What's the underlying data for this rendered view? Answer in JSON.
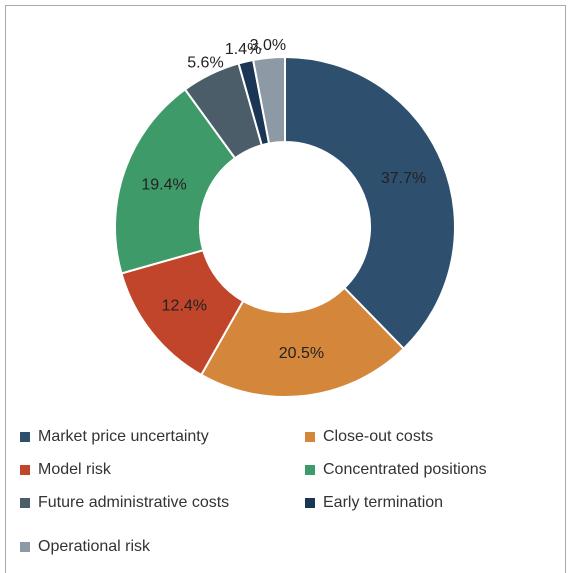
{
  "chart_data": {
    "type": "donut",
    "categories": [
      "Market price uncertainty",
      "Close-out costs",
      "Model risk",
      "Concentrated positions",
      "Future administrative costs",
      "Early termination",
      "Operational risk"
    ],
    "values": [
      37.7,
      20.5,
      12.4,
      19.4,
      5.6,
      1.4,
      3.0
    ],
    "value_labels": [
      "37.7%",
      "20.5%",
      "12.4%",
      "19.4%",
      "5.6%",
      "1.4%",
      "3.0%"
    ],
    "colors": [
      "#2e4f6e",
      "#d4873a",
      "#c0452a",
      "#3f9a6a",
      "#4a5d68",
      "#1b3554",
      "#8d9aa6"
    ],
    "legend": "bottom"
  }
}
